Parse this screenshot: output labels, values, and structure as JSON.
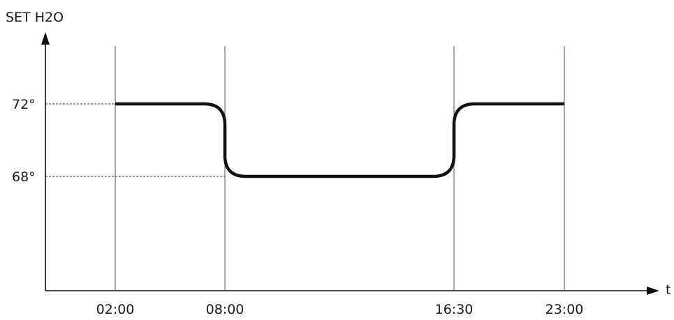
{
  "chart_data": {
    "type": "line",
    "title": "",
    "ylabel": "SET H2O",
    "xlabel": "t",
    "x_ticks": [
      "02:00",
      "08:00",
      "16:30",
      "23:00"
    ],
    "y_ticks": [
      "72°",
      "68°"
    ],
    "y_tick_values": [
      72,
      68
    ],
    "grid": "vertical lines at x ticks, dashed guides at y ticks",
    "series": [
      {
        "values": [
          {
            "x": "02:00",
            "y": 72
          },
          {
            "x": "08:00",
            "y": 72
          },
          {
            "x": "08:00",
            "y": 68
          },
          {
            "x": "16:30",
            "y": 68
          },
          {
            "x": "16:30",
            "y": 72
          },
          {
            "x": "23:00",
            "y": 72
          }
        ]
      }
    ]
  }
}
